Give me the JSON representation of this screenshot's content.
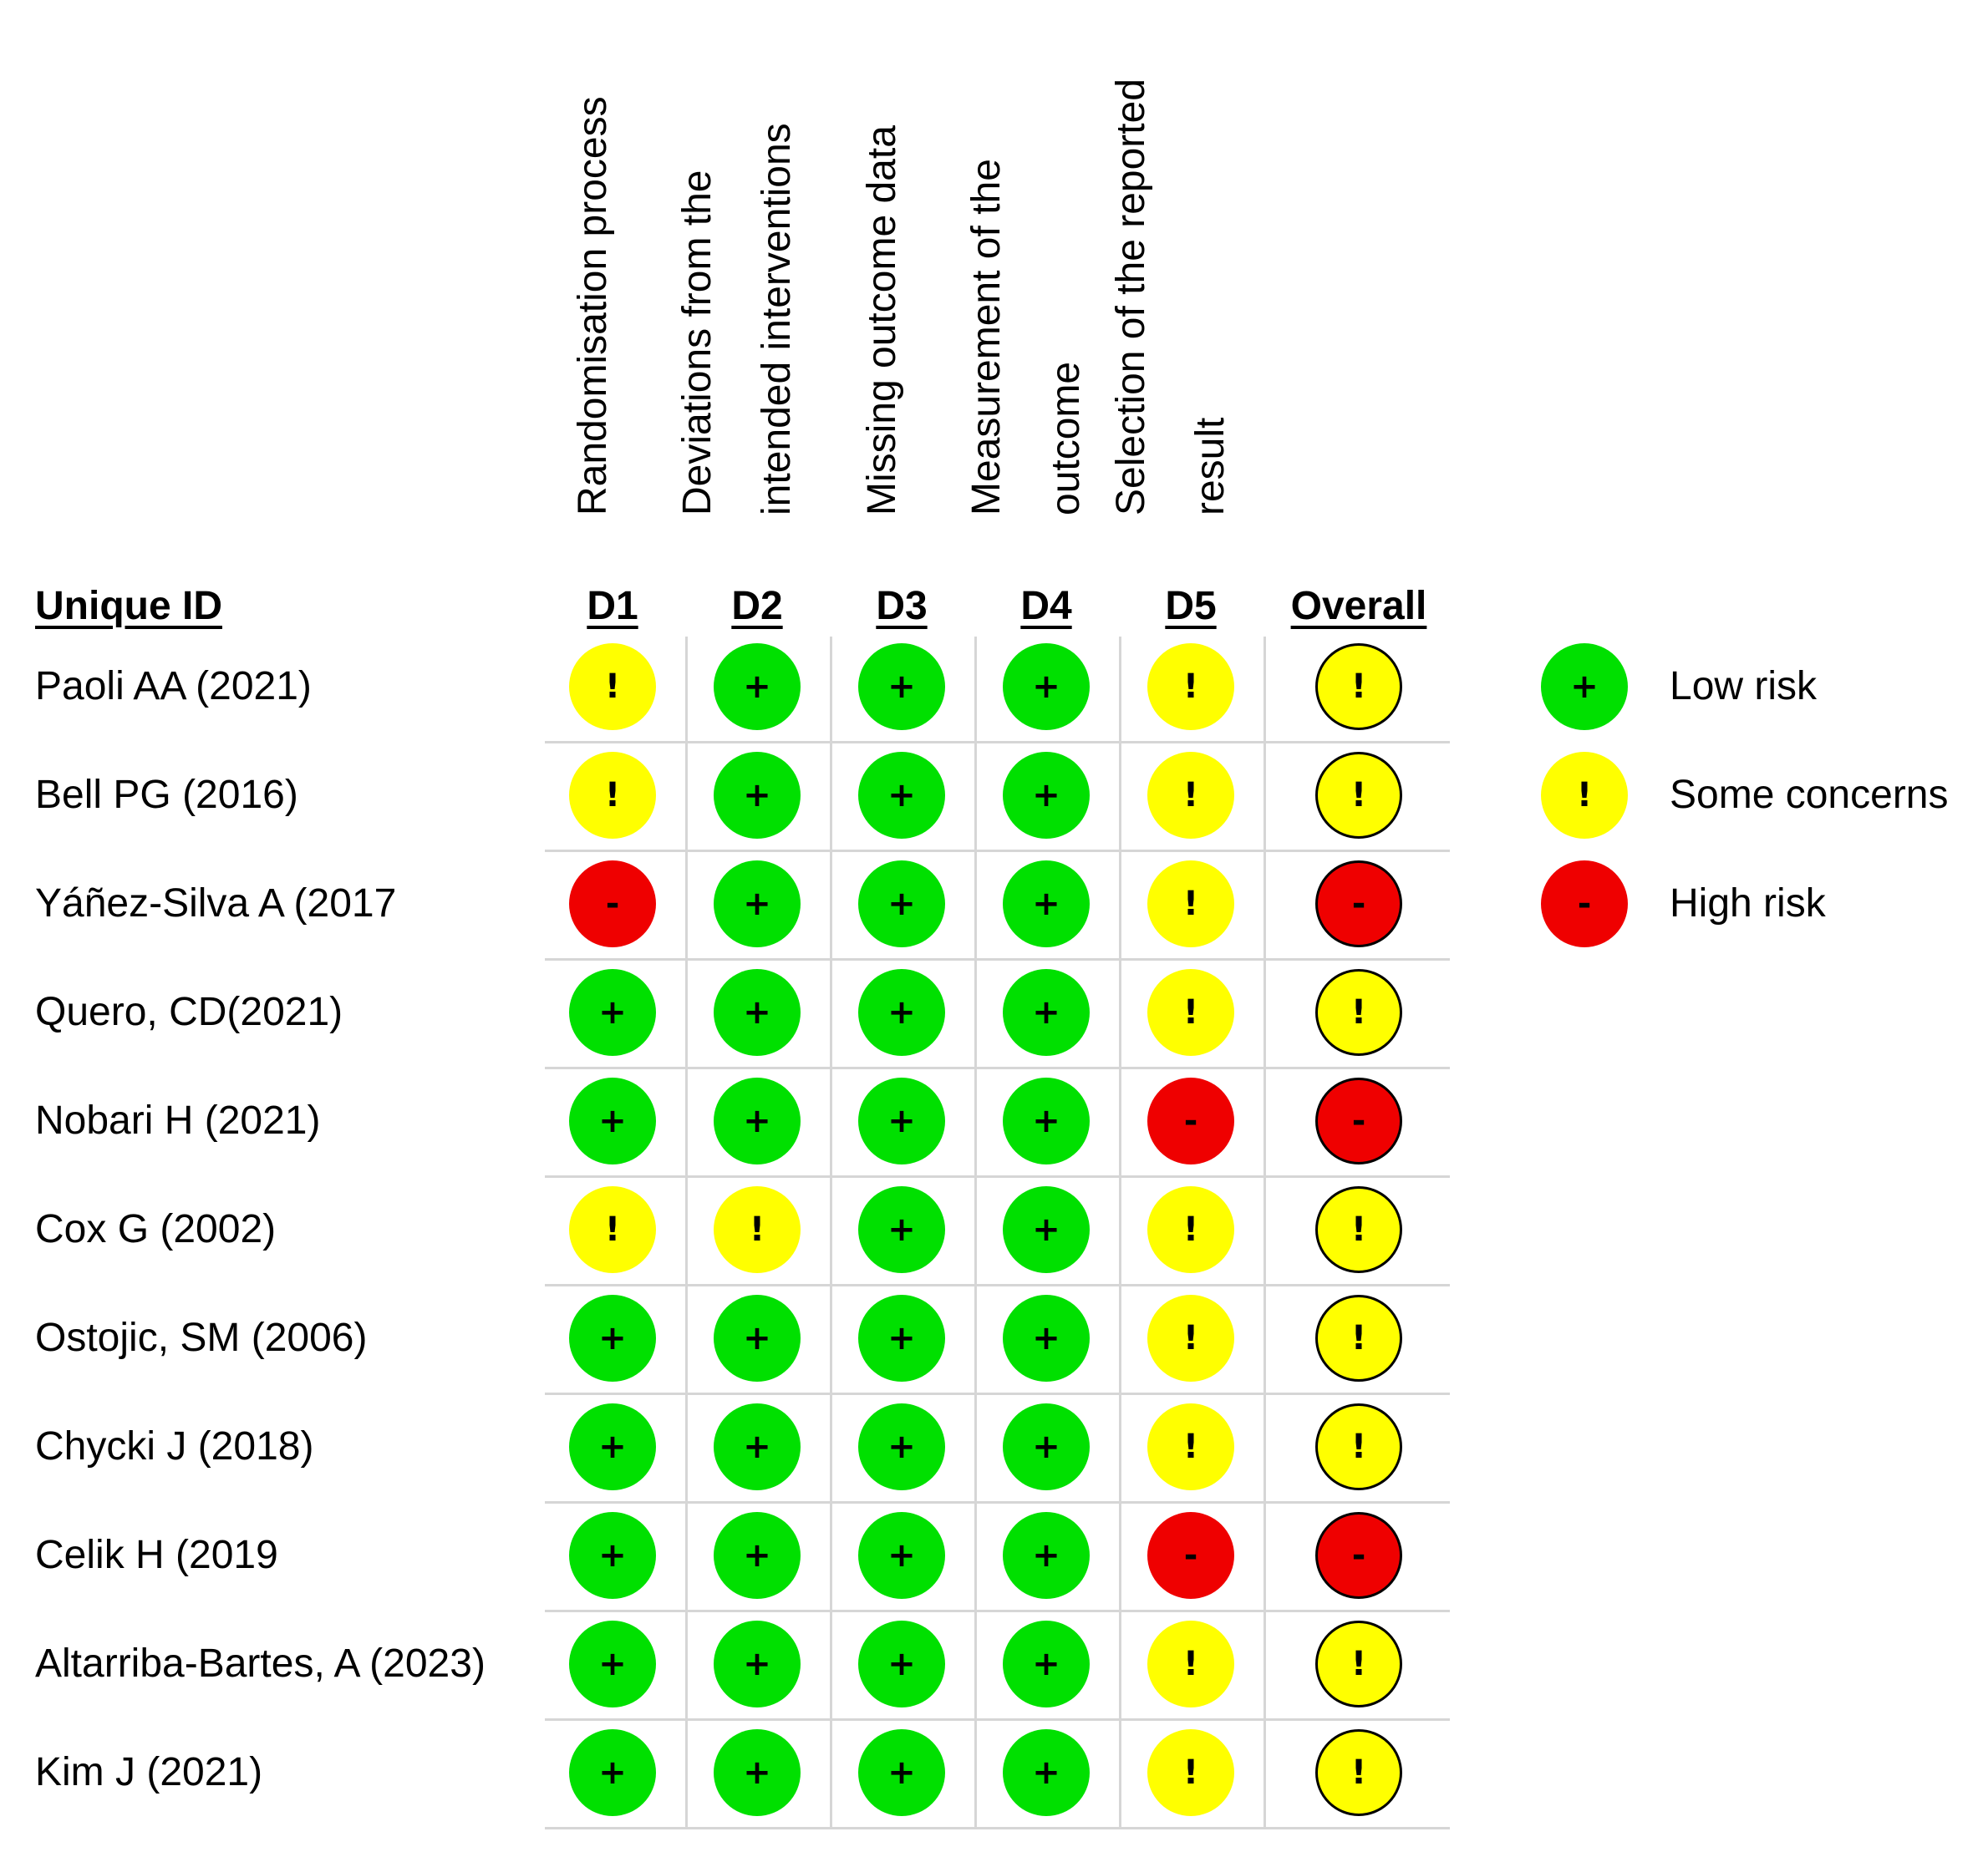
{
  "colors": {
    "low": "#00e000",
    "some": "#ffff00",
    "high": "#ef0000",
    "grid": "#d6d6d6"
  },
  "domains": [
    {
      "code": "D1",
      "lines": [
        "Randomisation process"
      ]
    },
    {
      "code": "D2",
      "lines": [
        "Deviations from the",
        "intended interventions"
      ]
    },
    {
      "code": "D3",
      "lines": [
        "Missing outcome data"
      ]
    },
    {
      "code": "D4",
      "lines": [
        "Measurement of the",
        "outcome"
      ]
    },
    {
      "code": "D5",
      "lines": [
        "Selection of the reported",
        "result"
      ]
    }
  ],
  "headers": {
    "id": "Unique ID",
    "overall": "Overall"
  },
  "studies": [
    {
      "id": "Paoli AA (2021)",
      "ratings": [
        "some",
        "low",
        "low",
        "low",
        "some"
      ],
      "overall": "some"
    },
    {
      "id": "Bell PG (2016)",
      "ratings": [
        "some",
        "low",
        "low",
        "low",
        "some"
      ],
      "overall": "some"
    },
    {
      "id": "Yáñez-Silva A (2017",
      "ratings": [
        "high",
        "low",
        "low",
        "low",
        "some"
      ],
      "overall": "high"
    },
    {
      "id": "Quero, CD(2021)",
      "ratings": [
        "low",
        "low",
        "low",
        "low",
        "some"
      ],
      "overall": "some"
    },
    {
      "id": "Nobari H (2021)",
      "ratings": [
        "low",
        "low",
        "low",
        "low",
        "high"
      ],
      "overall": "high"
    },
    {
      "id": "Cox G (2002)",
      "ratings": [
        "some",
        "some",
        "low",
        "low",
        "some"
      ],
      "overall": "some"
    },
    {
      "id": "Ostojic, SM (2006)",
      "ratings": [
        "low",
        "low",
        "low",
        "low",
        "some"
      ],
      "overall": "some"
    },
    {
      "id": "Chycki J (2018)",
      "ratings": [
        "low",
        "low",
        "low",
        "low",
        "some"
      ],
      "overall": "some"
    },
    {
      "id": "Celik H (2019",
      "ratings": [
        "low",
        "low",
        "low",
        "low",
        "high"
      ],
      "overall": "high"
    },
    {
      "id": "Altarriba-Bartes, A (2023)",
      "ratings": [
        "low",
        "low",
        "low",
        "low",
        "some"
      ],
      "overall": "some"
    },
    {
      "id": "Kim J (2021)",
      "ratings": [
        "low",
        "low",
        "low",
        "low",
        "some"
      ],
      "overall": "some"
    }
  ],
  "symbols": {
    "low": "+",
    "some": "!",
    "high": "-"
  },
  "legend": [
    {
      "key": "low",
      "label": "Low risk"
    },
    {
      "key": "some",
      "label": "Some concerns"
    },
    {
      "key": "high",
      "label": "High risk"
    }
  ]
}
